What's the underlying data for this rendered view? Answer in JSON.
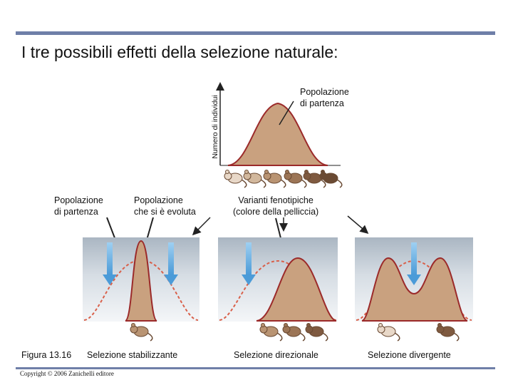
{
  "title": "I tre possibili effetti della selezione naturale:",
  "axis": {
    "ylabel": "Numero di individui"
  },
  "labels": {
    "start_pop_top": [
      "Popolazione",
      "di partenza"
    ],
    "start_pop_left": [
      "Popolazione",
      "di partenza"
    ],
    "evolved_pop": [
      "Popolazione",
      "che si è evoluta"
    ],
    "phenotypic_variants": [
      "Varianti fenotipiche",
      "(colore della pelliccia)"
    ]
  },
  "figure_label": "Figura 13.16",
  "panels": [
    {
      "caption": "Selezione stabilizzante"
    },
    {
      "caption": "Selezione direzionale"
    },
    {
      "caption": "Selezione divergente"
    }
  ],
  "copyright": "Copyright © 2006 Zanichelli editore",
  "colors": {
    "rule": "#6f7fa8",
    "curve_fill": "#c9a17f",
    "curve_stroke": "#9b2a2a",
    "dashed": "#d9604a",
    "arrow": "#5ea9e0",
    "panel_bg": "#dfe5ea"
  }
}
